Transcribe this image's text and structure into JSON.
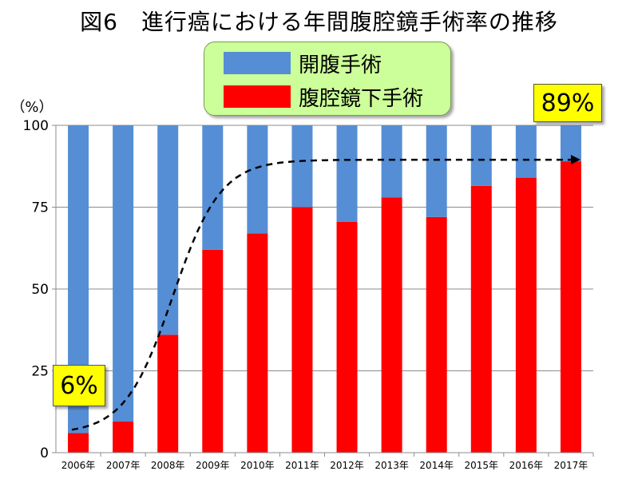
{
  "chart_data": {
    "type": "bar",
    "stacked": true,
    "title": "図6　進行癌における年間腹腔鏡手術率の推移",
    "ylabel": "（%）",
    "xlabel": "",
    "ylim": [
      0,
      100
    ],
    "yticks": [
      "0",
      "25",
      "50",
      "75",
      "100"
    ],
    "grid": true,
    "legend_position": "top-center",
    "categories": [
      "2006年",
      "2007年",
      "2008年",
      "2009年",
      "2010年",
      "2011年",
      "2012年",
      "2013年",
      "2014年",
      "2015年",
      "2016年",
      "2017年"
    ],
    "series": [
      {
        "name": "腹腔鏡下手術",
        "color": "#ff0000",
        "values": [
          6,
          9.5,
          36,
          62,
          67,
          75,
          70.5,
          78,
          72,
          81.5,
          84,
          89
        ]
      },
      {
        "name": "開腹手術",
        "color": "#558ed5",
        "values": [
          94,
          90.5,
          64,
          38,
          33,
          25,
          29.5,
          22,
          28,
          18.5,
          16,
          11
        ]
      }
    ],
    "trend_line": {
      "style": "dashed",
      "color": "#000000",
      "y_start": 7,
      "y_end": 89.5
    },
    "annotations": [
      {
        "text": "6%",
        "category": "2006年"
      },
      {
        "text": "89%",
        "category": "2017年"
      }
    ]
  }
}
